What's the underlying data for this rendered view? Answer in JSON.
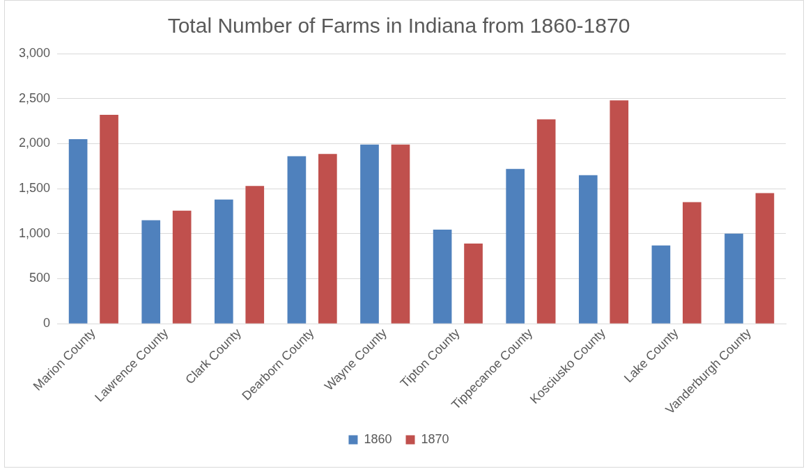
{
  "chart_data": {
    "type": "bar",
    "title": "Total Number of Farms in Indiana from 1860-1870",
    "categories": [
      "Marion County",
      "Lawrence County",
      "Clark County",
      "Dearborn County",
      "Wayne County",
      "Tipton County",
      "Tippecanoe County",
      "Kosciusko County",
      "Lake County",
      "Vanderburgh County"
    ],
    "series": [
      {
        "name": "1860",
        "color": "#4f81bd",
        "values": [
          2050,
          1150,
          1380,
          1860,
          1990,
          1045,
          1720,
          1650,
          870,
          1000
        ]
      },
      {
        "name": "1870",
        "color": "#c0504d",
        "values": [
          2320,
          1255,
          1530,
          1885,
          1990,
          890,
          2270,
          2480,
          1350,
          1450
        ]
      }
    ],
    "ylim": [
      0,
      3000
    ],
    "yticks": [
      {
        "value": 0,
        "label": "0"
      },
      {
        "value": 500,
        "label": "500"
      },
      {
        "value": 1000,
        "label": "1,000"
      },
      {
        "value": 1500,
        "label": "1,500"
      },
      {
        "value": 2000,
        "label": "2,000"
      },
      {
        "value": 2500,
        "label": "2,500"
      },
      {
        "value": 3000,
        "label": "3,000"
      }
    ],
    "grid": "y",
    "legend": "bottom"
  }
}
